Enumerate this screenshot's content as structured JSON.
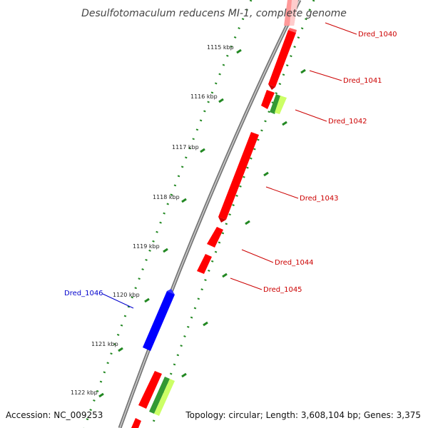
{
  "title": "Desulfotomaculum reducens MI-1, complete genome",
  "footer": {
    "accession": "Accession: NC_009253",
    "summary": "Topology: circular; Length: 3,608,104 bp; Genes: 3,375"
  },
  "ticks": [
    "1115 kbp",
    "1116 kbp",
    "1117 kbp",
    "1118 kbp",
    "1119 kbp",
    "1120 kbp",
    "1121 kbp",
    "1122 kbp"
  ],
  "genes": [
    {
      "name": "Dred_1040",
      "strand": "+"
    },
    {
      "name": "Dred_1041",
      "strand": "+"
    },
    {
      "name": "Dred_1042",
      "strand": "+"
    },
    {
      "name": "Dred_1043",
      "strand": "+"
    },
    {
      "name": "Dred_1044",
      "strand": "+"
    },
    {
      "name": "Dred_1045",
      "strand": "+"
    },
    {
      "name": "Dred_1046",
      "strand": "-"
    }
  ],
  "colors": {
    "forward_gene": "#ff0000",
    "reverse_gene": "#0000ff",
    "label_forward": "#cc0000",
    "label_reverse": "#0000cc",
    "backbone": "#888888",
    "dots": "#228822",
    "feature_green": "#339933",
    "feature_yellow": "#ccff66"
  }
}
